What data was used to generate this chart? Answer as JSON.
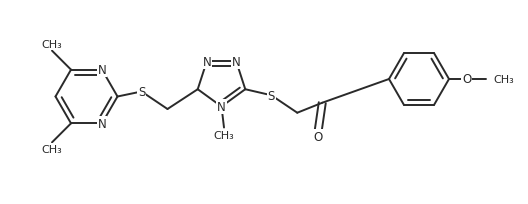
{
  "background_color": "#ffffff",
  "line_color": "#2a2a2a",
  "line_width": 1.4,
  "font_size": 8.5,
  "figsize": [
    5.28,
    2.05
  ],
  "dpi": 100,
  "xlim": [
    0.0,
    10.5
  ],
  "ylim": [
    0.0,
    4.1
  ]
}
